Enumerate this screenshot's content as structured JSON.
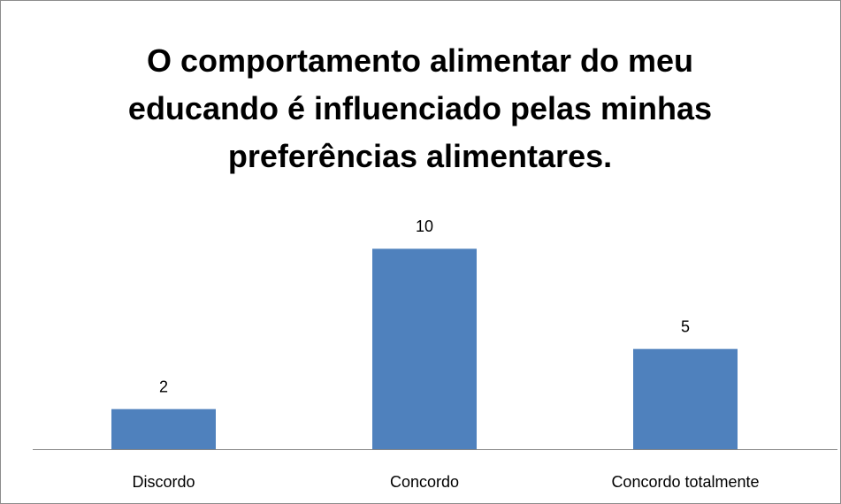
{
  "chart_data": {
    "type": "bar",
    "title": "O comportamento alimentar do meu educando é influenciado pelas minhas preferências alimentares.",
    "categories": [
      "Discordo",
      "Concordo",
      "Concordo totalmente"
    ],
    "values": [
      2,
      10,
      5
    ],
    "color": "#4f81bd",
    "ylim": [
      0,
      12
    ]
  }
}
